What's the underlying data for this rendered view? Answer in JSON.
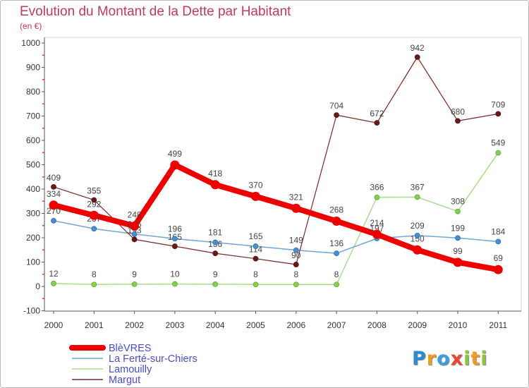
{
  "colors": {
    "title": "#c2366b",
    "legend_text": "#4b4bcf",
    "axis": "#555555",
    "minor_tick": "#e03a3a",
    "frame": "#d6d6d6",
    "logo": [
      "#2f8ad0",
      "#f29a1d",
      "#3aa0dc",
      "#e8492c",
      "#8cc63f",
      "#f29a1d",
      "#8cc63f"
    ]
  },
  "chart_data": {
    "type": "line",
    "title": "Evolution du Montant de la Dette par Habitant",
    "subtitle": "(en €)",
    "xlabel": "",
    "ylabel": "",
    "categories": [
      "2000",
      "2001",
      "2002",
      "2003",
      "2004",
      "2005",
      "2006",
      "2007",
      "2008",
      "2009",
      "2010",
      "2011"
    ],
    "ylim": [
      -100,
      1000
    ],
    "yticks": [
      1000,
      900,
      800,
      700,
      600,
      500,
      400,
      300,
      200,
      100,
      0,
      -100
    ],
    "grid": false,
    "legend_position": "bottom-left",
    "series": [
      {
        "name": "BlèVRES",
        "color": "#ee0000",
        "marker_color": "#ee0000",
        "marker_stroke": "#ee0000",
        "values": [
          334,
          292,
          248,
          499,
          418,
          370,
          321,
          268,
          214,
          150,
          99,
          69
        ]
      },
      {
        "name": "La Ferté-sur-Chiers",
        "color": "#6fa6d6",
        "marker_color": "#4a90cf",
        "marker_stroke": "#2a6aa8",
        "values": [
          270,
          237,
          215,
          196,
          181,
          165,
          149,
          136,
          197,
          209,
          199,
          184
        ]
      },
      {
        "name": "Lamouilly",
        "color": "#a6de8a",
        "marker_color": "#86d04f",
        "marker_stroke": "#5aa832",
        "values": [
          12,
          8,
          9,
          10,
          9,
          8,
          8,
          8,
          366,
          367,
          308,
          549
        ]
      },
      {
        "name": "Margut",
        "color": "#7a2626",
        "marker_color": "#6b1818",
        "marker_stroke": "#4a0e0e",
        "values": [
          409,
          355,
          193,
          165,
          136,
          114,
          90,
          704,
          672,
          942,
          680,
          709
        ]
      }
    ]
  },
  "logo": "Proxiti"
}
